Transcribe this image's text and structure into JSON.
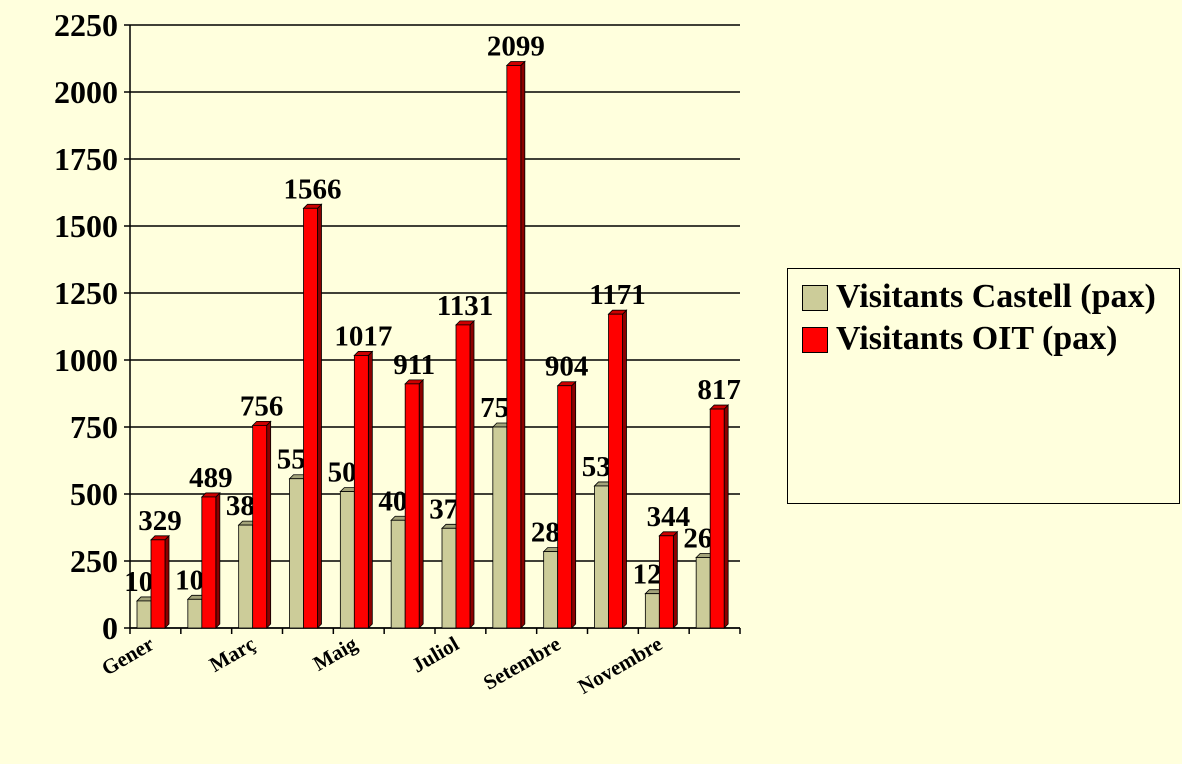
{
  "chart_data": {
    "type": "bar",
    "categories": [
      "Gener",
      null,
      "Març",
      null,
      "Maig",
      null,
      "Juliol",
      null,
      "Setembre",
      null,
      "Novembre",
      null
    ],
    "series": [
      {
        "name": "Visitants Castell (pax)",
        "color": "#cccc99",
        "values": [
          101,
          107,
          384,
          557,
          509,
          402,
          372,
          750,
          285,
          530,
          128,
          263
        ]
      },
      {
        "name": "Visitants OIT (pax)",
        "color": "#ff0000",
        "values": [
          329,
          489,
          756,
          1566,
          1017,
          911,
          1131,
          2099,
          904,
          1171,
          344,
          817
        ]
      }
    ],
    "ylim": [
      0,
      2250
    ],
    "yticks": [
      0,
      250,
      500,
      750,
      1000,
      1250,
      1500,
      1750,
      2000,
      2250
    ],
    "grid": true,
    "legend": "right"
  }
}
